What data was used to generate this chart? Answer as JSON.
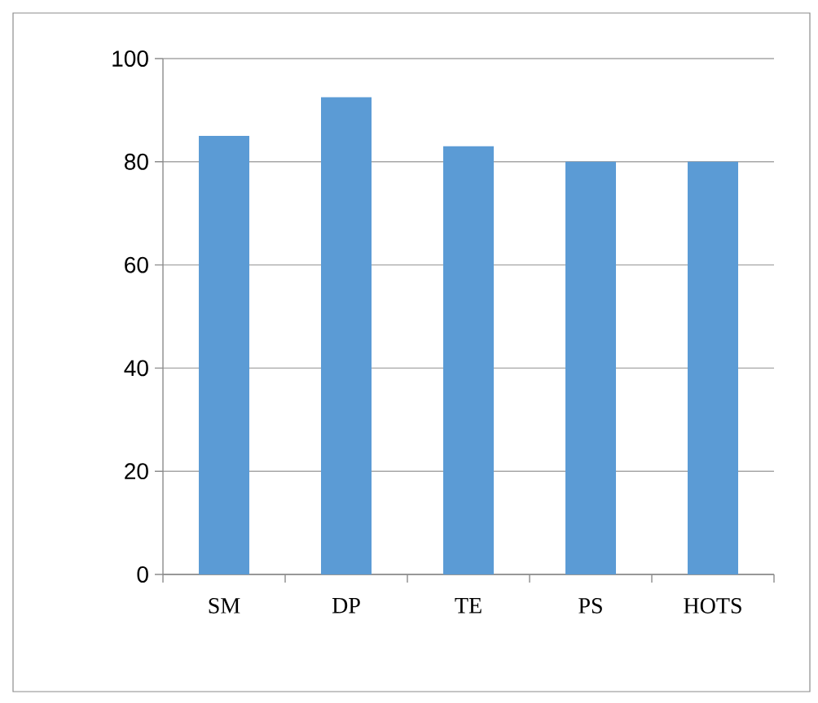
{
  "chart_data": {
    "type": "bar",
    "categories": [
      "SM",
      "DP",
      "TE",
      "PS",
      "HOTS"
    ],
    "values": [
      85,
      92.5,
      83,
      80,
      80
    ],
    "color": "#5b9bd5",
    "ylim": [
      0,
      100
    ],
    "yticks": [
      0,
      20,
      40,
      60,
      80,
      100
    ],
    "grid": "y"
  }
}
